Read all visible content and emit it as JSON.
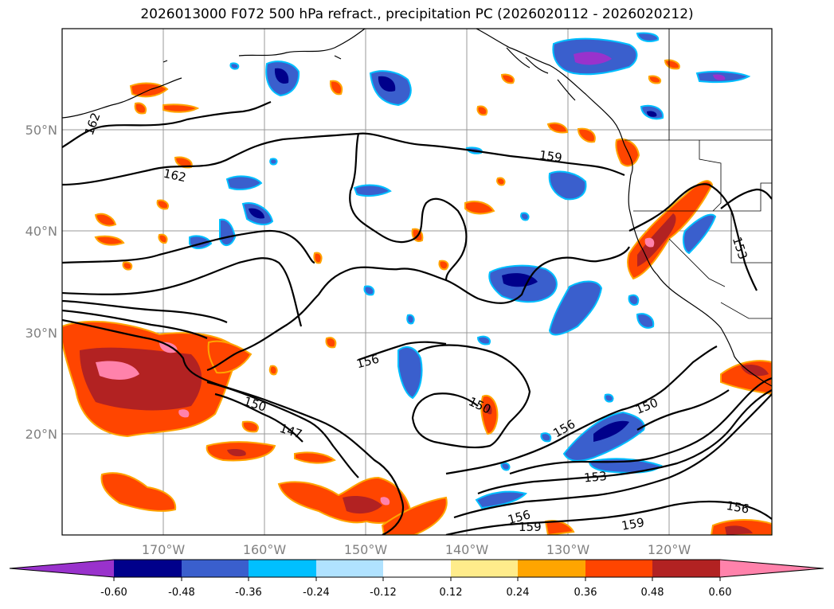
{
  "title": "2026013000 F072 500 hPa refract., precipitation PC (2026020112 - 2026020212)",
  "axes": {
    "lat_ticks": [
      "50°N",
      "40°N",
      "30°N",
      "20°N"
    ],
    "lon_ticks": [
      "170°W",
      "160°W",
      "150°W",
      "140°W",
      "130°W",
      "120°W"
    ]
  },
  "colorbar": {
    "colors": [
      "#9932cc",
      "#00008b",
      "#3a5fcd",
      "#00bfff",
      "#b0e2ff",
      "#ffffff",
      "#ffec8b",
      "#ffa500",
      "#ff4500",
      "#b22222",
      "#ff82ab"
    ],
    "tick_labels": [
      "-0.60",
      "-0.48",
      "-0.36",
      "-0.24",
      "-0.12",
      "0.12",
      "0.24",
      "0.36",
      "0.48",
      "0.60"
    ]
  },
  "contour_labels": [
    "162",
    "162",
    "159",
    "159",
    "159",
    "156",
    "156",
    "156",
    "156",
    "153",
    "153",
    "150",
    "150",
    "150",
    "147"
  ]
}
